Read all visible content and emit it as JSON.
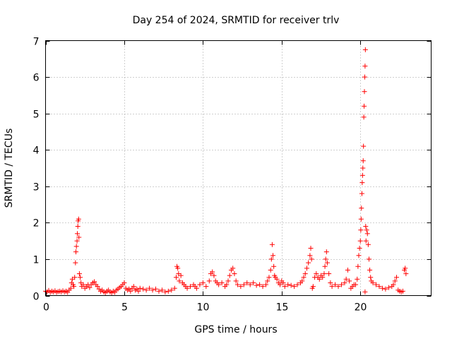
{
  "chart_data": {
    "type": "scatter",
    "title": "Day 254 of 2024, SRMTID for receiver trlv",
    "xlabel": "GPS time / hours",
    "ylabel": "SRMTID / TECUs",
    "xlim": [
      0,
      24.5
    ],
    "ylim": [
      0,
      7
    ],
    "x_ticks": [
      0,
      5,
      10,
      15,
      20
    ],
    "y_ticks": [
      0,
      1,
      2,
      3,
      4,
      5,
      6,
      7
    ],
    "grid": true,
    "marker": "+",
    "series": [
      {
        "name": "SRMTID",
        "color": "#ff0000",
        "points": [
          [
            0.0,
            0.12
          ],
          [
            0.1,
            0.1
          ],
          [
            0.2,
            0.14
          ],
          [
            0.3,
            0.09
          ],
          [
            0.4,
            0.12
          ],
          [
            0.5,
            0.1
          ],
          [
            0.6,
            0.13
          ],
          [
            0.7,
            0.09
          ],
          [
            0.8,
            0.11
          ],
          [
            0.9,
            0.12
          ],
          [
            1.0,
            0.1
          ],
          [
            1.1,
            0.13
          ],
          [
            1.2,
            0.1
          ],
          [
            1.3,
            0.12
          ],
          [
            1.4,
            0.09
          ],
          [
            1.5,
            0.15
          ],
          [
            1.6,
            0.2
          ],
          [
            1.65,
            0.35
          ],
          [
            1.7,
            0.45
          ],
          [
            1.75,
            0.3
          ],
          [
            1.8,
            0.25
          ],
          [
            1.85,
            0.5
          ],
          [
            1.9,
            0.9
          ],
          [
            1.93,
            1.2
          ],
          [
            1.96,
            1.35
          ],
          [
            2.0,
            1.5
          ],
          [
            2.02,
            1.7
          ],
          [
            2.05,
            1.9
          ],
          [
            2.07,
            2.05
          ],
          [
            2.1,
            2.1
          ],
          [
            2.12,
            1.6
          ],
          [
            2.15,
            0.6
          ],
          [
            2.2,
            0.5
          ],
          [
            2.25,
            0.35
          ],
          [
            2.3,
            0.25
          ],
          [
            2.4,
            0.3
          ],
          [
            2.5,
            0.2
          ],
          [
            2.6,
            0.25
          ],
          [
            2.7,
            0.3
          ],
          [
            2.8,
            0.22
          ],
          [
            2.9,
            0.3
          ],
          [
            3.0,
            0.35
          ],
          [
            3.1,
            0.38
          ],
          [
            3.2,
            0.3
          ],
          [
            3.3,
            0.25
          ],
          [
            3.4,
            0.18
          ],
          [
            3.5,
            0.12
          ],
          [
            3.6,
            0.15
          ],
          [
            3.7,
            0.1
          ],
          [
            3.8,
            0.08
          ],
          [
            3.9,
            0.12
          ],
          [
            4.0,
            0.15
          ],
          [
            4.1,
            0.1
          ],
          [
            4.2,
            0.08
          ],
          [
            4.3,
            0.12
          ],
          [
            4.4,
            0.09
          ],
          [
            4.5,
            0.15
          ],
          [
            4.6,
            0.18
          ],
          [
            4.7,
            0.22
          ],
          [
            4.8,
            0.25
          ],
          [
            4.9,
            0.3
          ],
          [
            5.0,
            0.35
          ],
          [
            5.1,
            0.2
          ],
          [
            5.2,
            0.15
          ],
          [
            5.3,
            0.18
          ],
          [
            5.4,
            0.12
          ],
          [
            5.5,
            0.2
          ],
          [
            5.6,
            0.25
          ],
          [
            5.7,
            0.15
          ],
          [
            5.8,
            0.18
          ],
          [
            5.9,
            0.12
          ],
          [
            6.0,
            0.2
          ],
          [
            6.2,
            0.18
          ],
          [
            6.4,
            0.15
          ],
          [
            6.6,
            0.2
          ],
          [
            6.8,
            0.15
          ],
          [
            7.0,
            0.18
          ],
          [
            7.2,
            0.12
          ],
          [
            7.4,
            0.15
          ],
          [
            7.6,
            0.1
          ],
          [
            7.8,
            0.12
          ],
          [
            8.0,
            0.15
          ],
          [
            8.2,
            0.2
          ],
          [
            8.3,
            0.5
          ],
          [
            8.35,
            0.8
          ],
          [
            8.4,
            0.75
          ],
          [
            8.45,
            0.6
          ],
          [
            8.5,
            0.4
          ],
          [
            8.6,
            0.55
          ],
          [
            8.7,
            0.35
          ],
          [
            8.8,
            0.3
          ],
          [
            8.9,
            0.25
          ],
          [
            9.0,
            0.2
          ],
          [
            9.2,
            0.25
          ],
          [
            9.4,
            0.3
          ],
          [
            9.5,
            0.25
          ],
          [
            9.6,
            0.2
          ],
          [
            9.8,
            0.3
          ],
          [
            10.0,
            0.35
          ],
          [
            10.2,
            0.25
          ],
          [
            10.4,
            0.4
          ],
          [
            10.5,
            0.6
          ],
          [
            10.6,
            0.65
          ],
          [
            10.7,
            0.55
          ],
          [
            10.8,
            0.4
          ],
          [
            10.9,
            0.35
          ],
          [
            11.0,
            0.3
          ],
          [
            11.2,
            0.35
          ],
          [
            11.4,
            0.25
          ],
          [
            11.5,
            0.3
          ],
          [
            11.6,
            0.4
          ],
          [
            11.7,
            0.55
          ],
          [
            11.8,
            0.7
          ],
          [
            11.9,
            0.75
          ],
          [
            12.0,
            0.6
          ],
          [
            12.1,
            0.4
          ],
          [
            12.2,
            0.3
          ],
          [
            12.4,
            0.25
          ],
          [
            12.6,
            0.3
          ],
          [
            12.8,
            0.35
          ],
          [
            13.0,
            0.3
          ],
          [
            13.2,
            0.35
          ],
          [
            13.4,
            0.28
          ],
          [
            13.6,
            0.3
          ],
          [
            13.8,
            0.25
          ],
          [
            14.0,
            0.3
          ],
          [
            14.1,
            0.4
          ],
          [
            14.2,
            0.5
          ],
          [
            14.3,
            0.7
          ],
          [
            14.35,
            1.0
          ],
          [
            14.4,
            1.4
          ],
          [
            14.45,
            1.1
          ],
          [
            14.5,
            0.8
          ],
          [
            14.55,
            0.55
          ],
          [
            14.6,
            0.5
          ],
          [
            14.7,
            0.45
          ],
          [
            14.8,
            0.35
          ],
          [
            14.9,
            0.3
          ],
          [
            15.0,
            0.4
          ],
          [
            15.1,
            0.35
          ],
          [
            15.2,
            0.25
          ],
          [
            15.4,
            0.3
          ],
          [
            15.6,
            0.28
          ],
          [
            15.8,
            0.25
          ],
          [
            16.0,
            0.3
          ],
          [
            16.2,
            0.35
          ],
          [
            16.3,
            0.4
          ],
          [
            16.4,
            0.5
          ],
          [
            16.5,
            0.6
          ],
          [
            16.6,
            0.75
          ],
          [
            16.7,
            0.9
          ],
          [
            16.8,
            1.1
          ],
          [
            16.85,
            1.3
          ],
          [
            16.9,
            1.0
          ],
          [
            16.95,
            0.2
          ],
          [
            17.0,
            0.25
          ],
          [
            17.1,
            0.5
          ],
          [
            17.2,
            0.6
          ],
          [
            17.3,
            0.5
          ],
          [
            17.4,
            0.45
          ],
          [
            17.5,
            0.55
          ],
          [
            17.6,
            0.5
          ],
          [
            17.7,
            0.6
          ],
          [
            17.75,
            0.8
          ],
          [
            17.8,
            1.0
          ],
          [
            17.85,
            1.2
          ],
          [
            17.9,
            0.9
          ],
          [
            18.0,
            0.6
          ],
          [
            18.1,
            0.35
          ],
          [
            18.2,
            0.25
          ],
          [
            18.4,
            0.3
          ],
          [
            18.6,
            0.25
          ],
          [
            18.8,
            0.3
          ],
          [
            19.0,
            0.35
          ],
          [
            19.1,
            0.45
          ],
          [
            19.2,
            0.7
          ],
          [
            19.3,
            0.4
          ],
          [
            19.4,
            0.2
          ],
          [
            19.5,
            0.25
          ],
          [
            19.6,
            0.3
          ],
          [
            19.7,
            0.3
          ],
          [
            19.8,
            0.45
          ],
          [
            19.85,
            0.8
          ],
          [
            19.9,
            1.1
          ],
          [
            19.95,
            1.3
          ],
          [
            20.0,
            1.5
          ],
          [
            20.03,
            1.8
          ],
          [
            20.05,
            2.1
          ],
          [
            20.07,
            2.4
          ],
          [
            20.1,
            2.8
          ],
          [
            20.12,
            3.1
          ],
          [
            20.14,
            3.3
          ],
          [
            20.16,
            3.5
          ],
          [
            20.18,
            3.7
          ],
          [
            20.2,
            4.1
          ],
          [
            20.22,
            4.9
          ],
          [
            20.24,
            5.2
          ],
          [
            20.26,
            5.6
          ],
          [
            20.28,
            6.0
          ],
          [
            20.3,
            6.3
          ],
          [
            20.32,
            6.75
          ],
          [
            20.34,
            1.9
          ],
          [
            20.36,
            1.5
          ],
          [
            20.4,
            1.8
          ],
          [
            20.45,
            1.7
          ],
          [
            20.5,
            1.4
          ],
          [
            20.55,
            1.0
          ],
          [
            20.6,
            0.7
          ],
          [
            20.65,
            0.5
          ],
          [
            20.7,
            0.4
          ],
          [
            20.3,
            0.1
          ],
          [
            20.8,
            0.35
          ],
          [
            21.0,
            0.3
          ],
          [
            21.2,
            0.25
          ],
          [
            21.4,
            0.2
          ],
          [
            21.6,
            0.18
          ],
          [
            21.8,
            0.22
          ],
          [
            22.0,
            0.25
          ],
          [
            22.1,
            0.3
          ],
          [
            22.2,
            0.4
          ],
          [
            22.3,
            0.5
          ],
          [
            22.4,
            0.15
          ],
          [
            22.5,
            0.12
          ],
          [
            22.6,
            0.1
          ],
          [
            22.7,
            0.12
          ],
          [
            22.8,
            0.7
          ],
          [
            22.85,
            0.75
          ],
          [
            22.9,
            0.6
          ]
        ]
      }
    ]
  }
}
